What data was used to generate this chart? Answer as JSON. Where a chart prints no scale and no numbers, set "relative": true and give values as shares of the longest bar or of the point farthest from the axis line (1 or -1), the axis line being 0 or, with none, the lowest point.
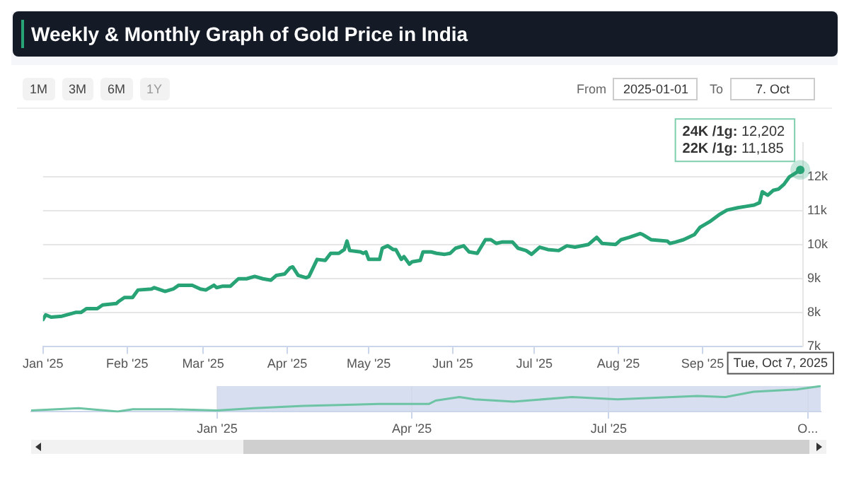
{
  "chart_data": [
    {
      "type": "line",
      "title": "Weekly & Monthly Graph of Gold Price in India",
      "x": [
        "2025-01-01",
        "2025-01-02",
        "2025-01-04",
        "2025-01-08",
        "2025-01-13",
        "2025-01-15",
        "2025-01-17",
        "2025-01-21",
        "2025-01-23",
        "2025-01-28",
        "2025-01-29",
        "2025-01-31",
        "2025-02-03",
        "2025-02-05",
        "2025-02-10",
        "2025-02-11",
        "2025-02-15",
        "2025-02-18",
        "2025-02-20",
        "2025-02-25",
        "2025-02-28",
        "2025-03-02",
        "2025-03-05",
        "2025-03-06",
        "2025-03-08",
        "2025-03-11",
        "2025-03-14",
        "2025-03-17",
        "2025-03-20",
        "2025-03-23",
        "2025-03-26",
        "2025-03-28",
        "2025-03-31",
        "2025-04-02",
        "2025-04-03",
        "2025-04-05",
        "2025-04-08",
        "2025-04-09",
        "2025-04-12",
        "2025-04-15",
        "2025-04-17",
        "2025-04-20",
        "2025-04-22",
        "2025-04-23",
        "2025-04-24",
        "2025-04-28",
        "2025-04-29",
        "2025-04-30",
        "2025-05-01",
        "2025-05-05",
        "2025-05-06",
        "2025-05-08",
        "2025-05-10",
        "2025-05-11",
        "2025-05-13",
        "2025-05-14",
        "2025-05-16",
        "2025-05-17",
        "2025-05-20",
        "2025-05-21",
        "2025-05-24",
        "2025-05-26",
        "2025-05-29",
        "2025-05-31",
        "2025-06-02",
        "2025-06-05",
        "2025-06-07",
        "2025-06-10",
        "2025-06-13",
        "2025-06-15",
        "2025-06-17",
        "2025-06-19",
        "2025-06-23",
        "2025-06-25",
        "2025-06-28",
        "2025-06-30",
        "2025-07-03",
        "2025-07-06",
        "2025-07-10",
        "2025-07-13",
        "2025-07-16",
        "2025-07-21",
        "2025-07-24",
        "2025-07-26",
        "2025-07-31",
        "2025-08-02",
        "2025-08-05",
        "2025-08-09",
        "2025-08-10",
        "2025-08-13",
        "2025-08-19",
        "2025-08-20",
        "2025-08-22",
        "2025-08-25",
        "2025-08-29",
        "2025-08-31",
        "2025-09-04",
        "2025-09-07",
        "2025-09-10",
        "2025-09-14",
        "2025-09-17",
        "2025-09-20",
        "2025-09-22",
        "2025-09-23",
        "2025-09-25",
        "2025-09-27",
        "2025-09-29",
        "2025-10-01",
        "2025-10-03",
        "2025-10-05",
        "2025-10-07"
      ],
      "series": [
        {
          "color": "#27a376",
          "values": [
            7800,
            7940,
            7870,
            7900,
            8010,
            8010,
            8120,
            8120,
            8230,
            8270,
            8340,
            8450,
            8450,
            8670,
            8700,
            8740,
            8630,
            8700,
            8810,
            8810,
            8700,
            8670,
            8810,
            8740,
            8780,
            8780,
            9000,
            9000,
            9070,
            9000,
            8960,
            9100,
            9140,
            9320,
            9350,
            9100,
            9030,
            9070,
            9570,
            9540,
            9750,
            9750,
            9860,
            10110,
            9830,
            9790,
            9750,
            9790,
            9570,
            9570,
            9900,
            9970,
            9860,
            9860,
            9570,
            9650,
            9430,
            9500,
            9540,
            9790,
            9790,
            9750,
            9720,
            9750,
            9900,
            9970,
            9790,
            9750,
            10150,
            10150,
            10040,
            10080,
            10080,
            9900,
            9830,
            9720,
            9930,
            9860,
            9830,
            9970,
            9930,
            10010,
            10220,
            10040,
            10010,
            10150,
            10220,
            10330,
            10300,
            10150,
            10110,
            10040,
            10080,
            10150,
            10300,
            10510,
            10700,
            10880,
            11020,
            11090,
            11130,
            11170,
            11240,
            11560,
            11460,
            11600,
            11640,
            11780,
            12000,
            12100,
            12202
          ]
        }
      ],
      "xlim": [
        "2025-01-01",
        "2025-10-08"
      ],
      "xticks": [
        {
          "value": "2025-01-01",
          "label": "Jan '25"
        },
        {
          "value": "2025-02-01",
          "label": "Feb '25"
        },
        {
          "value": "2025-03-01",
          "label": "Mar '25"
        },
        {
          "value": "2025-04-01",
          "label": "Apr '25"
        },
        {
          "value": "2025-05-01",
          "label": "May '25"
        },
        {
          "value": "2025-06-01",
          "label": "Jun '25"
        },
        {
          "value": "2025-07-01",
          "label": "Jul '25"
        },
        {
          "value": "2025-08-01",
          "label": "Aug '25"
        },
        {
          "value": "2025-09-01",
          "label": "Sep '25"
        }
      ],
      "ylim": [
        7000,
        13000
      ],
      "yticks": [
        {
          "value": 7000,
          "label": "7k"
        },
        {
          "value": 8000,
          "label": "8k"
        },
        {
          "value": 9000,
          "label": "9k"
        },
        {
          "value": 10000,
          "label": "10k"
        },
        {
          "value": 11000,
          "label": "11k"
        },
        {
          "value": 12000,
          "label": "12k"
        }
      ],
      "grid": "y",
      "marker": "none",
      "annotations": [
        "1M",
        "3M",
        "6M",
        "1Y",
        "From",
        "2025-01-01",
        "To",
        "7. Oct",
        {
          "text": "24K /1g: 12,202\n22K /1g: 11,185",
          "x": "2025-10-07",
          "y": 12202
        },
        "Tue, Oct 7, 2025"
      ]
    },
    {
      "type": "line",
      "relative": true,
      "x": [
        "2024-10-07",
        "2024-10-29",
        "2024-11-16",
        "2024-11-23",
        "2024-12-11",
        "2025-01-01",
        "2025-01-18",
        "2025-02-10",
        "2025-03-17",
        "2025-04-09",
        "2025-04-12",
        "2025-04-23",
        "2025-04-30",
        "2025-05-18",
        "2025-06-14",
        "2025-07-05",
        "2025-08-11",
        "2025-08-24",
        "2025-09-06",
        "2025-09-26",
        "2025-10-07"
      ],
      "series": [
        {
          "color": "#6cc4a4",
          "values": [
            0.04,
            0.13,
            0,
            0.09,
            0.09,
            0.04,
            0.13,
            0.22,
            0.3,
            0.3,
            0.43,
            0.57,
            0.48,
            0.39,
            0.57,
            0.48,
            0.61,
            0.57,
            0.78,
            0.87,
            1
          ]
        }
      ],
      "xlim": [
        "2024-10-07",
        "2025-10-07"
      ],
      "xticks": [
        {
          "value": "2025-01-01",
          "label": "Jan '25"
        },
        {
          "value": "2025-04-01",
          "label": "Apr '25"
        },
        {
          "value": "2025-07-01",
          "label": "Jul '25"
        },
        {
          "value": "2025-10-01",
          "label": "O..."
        }
      ],
      "bands": [
        {
          "axis": "x",
          "from": "2025-01-01",
          "to": "2025-10-07",
          "color": "#ccd6eb"
        }
      ],
      "grid": "x",
      "marker": "none",
      "tick_labels": "x"
    }
  ]
}
